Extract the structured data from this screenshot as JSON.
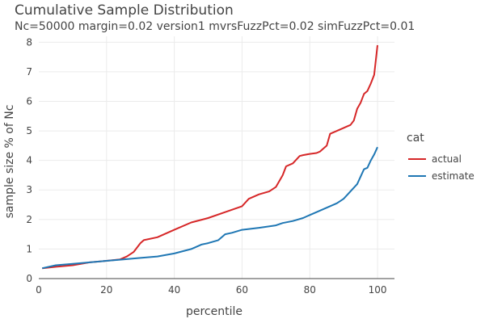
{
  "chart_data": {
    "type": "line",
    "title": "Cumulative Sample Distribution",
    "subtitle": "Nc=50000 margin=0.02 version1 mvrsFuzzPct=0.02 simFuzzPct=0.01",
    "xlabel": "percentile",
    "ylabel": "sample size % of Nc",
    "xlim": [
      0,
      105
    ],
    "ylim": [
      0,
      8.2
    ],
    "x_ticks": [
      0,
      20,
      40,
      60,
      80,
      100
    ],
    "y_ticks": [
      0,
      1,
      2,
      3,
      4,
      5,
      6,
      7,
      8
    ],
    "grid": true,
    "legend": {
      "title": "cat",
      "position": "right"
    },
    "series": [
      {
        "name": "actual",
        "color": "#d62728",
        "x": [
          1,
          5,
          10,
          15,
          20,
          24,
          26,
          28,
          30,
          31,
          35,
          40,
          45,
          50,
          55,
          60,
          62,
          65,
          68,
          70,
          72,
          73,
          75,
          77,
          78,
          80,
          82,
          83,
          84,
          85,
          86,
          88,
          90,
          91,
          92,
          93,
          94,
          95,
          96,
          97,
          98,
          99,
          100
        ],
        "y": [
          0.35,
          0.4,
          0.45,
          0.55,
          0.6,
          0.65,
          0.75,
          0.9,
          1.2,
          1.3,
          1.4,
          1.65,
          1.9,
          2.05,
          2.25,
          2.45,
          2.7,
          2.85,
          2.95,
          3.1,
          3.5,
          3.8,
          3.9,
          4.15,
          4.18,
          4.22,
          4.25,
          4.3,
          4.4,
          4.5,
          4.9,
          5.0,
          5.1,
          5.15,
          5.2,
          5.35,
          5.75,
          5.95,
          6.25,
          6.35,
          6.6,
          6.9,
          7.9
        ]
      },
      {
        "name": "estimate",
        "color": "#1f77b4",
        "x": [
          1,
          5,
          10,
          15,
          20,
          25,
          30,
          35,
          40,
          45,
          48,
          50,
          53,
          55,
          57,
          60,
          65,
          70,
          72,
          75,
          78,
          80,
          82,
          85,
          88,
          90,
          92,
          94,
          96,
          97,
          98,
          99,
          100
        ],
        "y": [
          0.35,
          0.45,
          0.5,
          0.55,
          0.6,
          0.65,
          0.7,
          0.75,
          0.85,
          1.0,
          1.15,
          1.2,
          1.3,
          1.5,
          1.55,
          1.65,
          1.72,
          1.8,
          1.88,
          1.95,
          2.05,
          2.15,
          2.25,
          2.4,
          2.55,
          2.7,
          2.95,
          3.2,
          3.7,
          3.75,
          4.0,
          4.2,
          4.45
        ]
      }
    ]
  }
}
